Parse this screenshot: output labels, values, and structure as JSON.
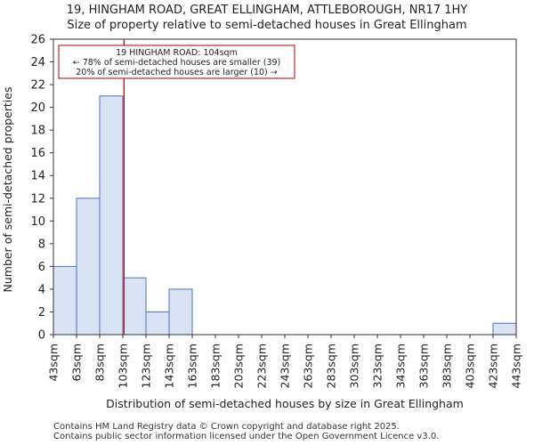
{
  "header": {
    "title_line1": "19, HINGHAM ROAD, GREAT ELLINGHAM, ATTLEBOROUGH, NR17 1HY",
    "title_line2": "Size of property relative to semi-detached houses in Great Ellingham"
  },
  "chart_data": {
    "type": "bar",
    "bin_edges": [
      43,
      63,
      83,
      103,
      123,
      143,
      163,
      183,
      203,
      223,
      243,
      263,
      283,
      303,
      323,
      343,
      363,
      383,
      403,
      423,
      443
    ],
    "tick_labels": [
      "43sqm",
      "63sqm",
      "83sqm",
      "103sqm",
      "123sqm",
      "143sqm",
      "163sqm",
      "183sqm",
      "203sqm",
      "223sqm",
      "243sqm",
      "263sqm",
      "283sqm",
      "303sqm",
      "323sqm",
      "343sqm",
      "363sqm",
      "383sqm",
      "403sqm",
      "423sqm",
      "443sqm"
    ],
    "values": [
      6,
      12,
      21,
      5,
      2,
      4,
      0,
      0,
      0,
      0,
      0,
      0,
      0,
      0,
      0,
      0,
      0,
      0,
      0,
      1
    ],
    "ylim": [
      0,
      26
    ],
    "yticks": [
      0,
      2,
      4,
      6,
      8,
      10,
      12,
      14,
      16,
      18,
      20,
      22,
      24,
      26
    ],
    "xlabel": "Distribution of semi-detached houses by size in Great Ellingham",
    "ylabel": "Number of semi-detached properties",
    "marker_value": 104,
    "annotation": {
      "line1": "19 HINGHAM ROAD: 104sqm",
      "line2": "← 78% of semi-detached houses are smaller (39)",
      "line3": "20% of semi-detached houses are larger (10) →"
    },
    "colors": {
      "bar_fill": "#dae3f3",
      "bar_stroke": "#4a73b8",
      "marker": "#aa0000"
    }
  },
  "footer": {
    "line1": "Contains HM Land Registry data © Crown copyright and database right 2025.",
    "line2": "Contains public sector information licensed under the Open Government Licence v3.0."
  }
}
